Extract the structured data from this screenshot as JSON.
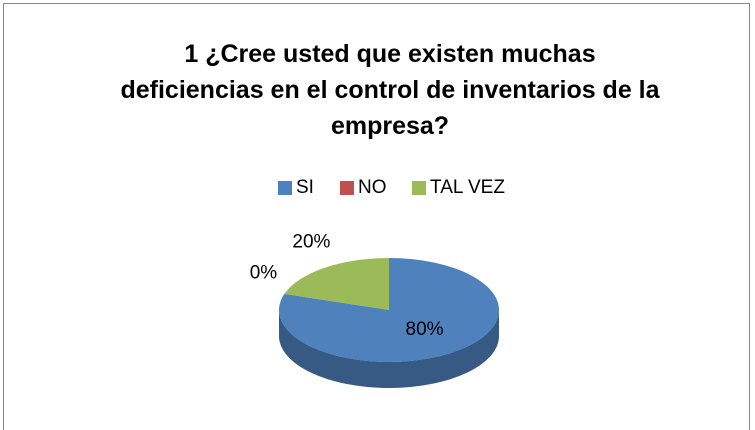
{
  "chart_data": {
    "type": "pie",
    "title": "1 ¿Cree usted que existen muchas deficiencias en el control de inventarios de la empresa?",
    "categories": [
      "SI",
      "NO",
      "TAL VEZ"
    ],
    "values": [
      80,
      0,
      20
    ],
    "value_labels": [
      "80%",
      "0%",
      "20%"
    ],
    "colors": [
      "#4f81bd",
      "#c0504d",
      "#9bbb59"
    ],
    "legend": "top"
  }
}
